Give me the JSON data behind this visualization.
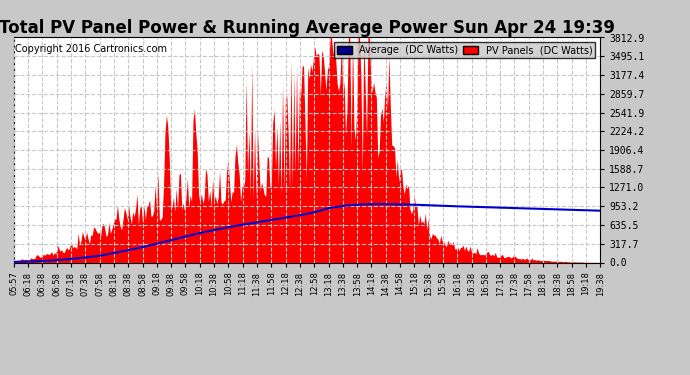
{
  "title": "Total PV Panel Power & Running Average Power Sun Apr 24 19:39",
  "copyright": "Copyright 2016 Cartronics.com",
  "ylabel_right_ticks": [
    0.0,
    317.7,
    635.5,
    953.2,
    1271.0,
    1588.7,
    1906.4,
    2224.2,
    2541.9,
    2859.7,
    3177.4,
    3495.1,
    3812.9
  ],
  "ymax": 3812.9,
  "background_color": "#c8c8c8",
  "plot_bg_color": "#ffffff",
  "grid_color": "#c8c8c8",
  "pv_color": "#ff0000",
  "avg_color": "#0000cc",
  "legend_avg_bg": "#00008b",
  "legend_pv_bg": "#ff0000",
  "title_fontsize": 12,
  "copyright_fontsize": 7,
  "x_labels": [
    "05:57",
    "06:18",
    "06:38",
    "06:58",
    "07:18",
    "07:38",
    "07:58",
    "08:18",
    "08:38",
    "08:58",
    "09:18",
    "09:38",
    "09:58",
    "10:18",
    "10:38",
    "10:58",
    "11:18",
    "11:38",
    "11:58",
    "12:18",
    "12:38",
    "12:58",
    "13:18",
    "13:38",
    "13:58",
    "14:18",
    "14:38",
    "14:58",
    "15:18",
    "15:38",
    "15:58",
    "16:18",
    "16:38",
    "16:58",
    "17:18",
    "17:38",
    "17:58",
    "18:18",
    "18:38",
    "18:58",
    "19:18",
    "19:38"
  ],
  "pv_base_envelope": [
    20,
    40,
    80,
    130,
    200,
    280,
    380,
    480,
    560,
    620,
    700,
    750,
    820,
    870,
    900,
    950,
    980,
    1050,
    1100,
    1150,
    1200,
    1300,
    3700,
    3600,
    3400,
    3000,
    2400,
    1800,
    1300,
    900,
    700,
    600,
    500,
    430,
    350,
    280,
    220,
    160,
    110,
    70,
    30,
    10
  ],
  "avg_values": [
    10,
    15,
    25,
    40,
    60,
    85,
    115,
    160,
    210,
    260,
    320,
    380,
    440,
    500,
    550,
    600,
    640,
    680,
    720,
    760,
    800,
    850,
    920,
    960,
    980,
    990,
    990,
    985,
    980,
    970,
    960,
    952,
    945,
    938,
    930,
    922,
    915,
    907,
    900,
    893,
    885,
    878
  ]
}
